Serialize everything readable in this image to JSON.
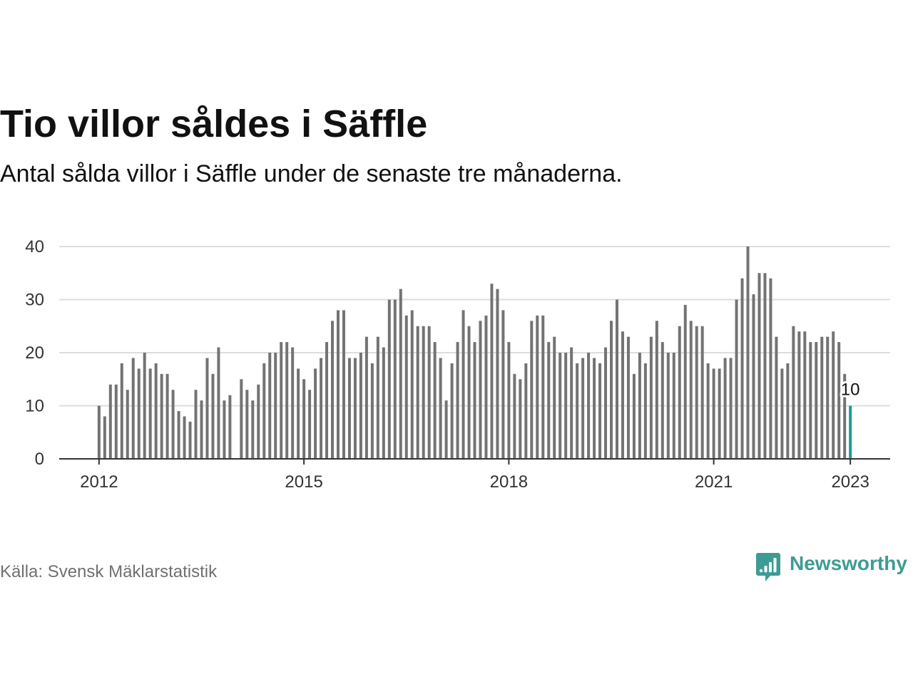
{
  "chart_data": {
    "type": "bar",
    "title": "Tio villor såldes i Säffle",
    "subtitle": "Antal sålda villor i Säffle under de senaste tre månaderna.",
    "x": [
      "2012-01",
      "2012-02",
      "2012-03",
      "2012-04",
      "2012-05",
      "2012-06",
      "2012-07",
      "2012-08",
      "2012-09",
      "2012-10",
      "2012-11",
      "2012-12",
      "2013-01",
      "2013-02",
      "2013-03",
      "2013-04",
      "2013-05",
      "2013-06",
      "2013-07",
      "2013-08",
      "2013-09",
      "2013-10",
      "2013-11",
      "2013-12",
      "2014-01",
      "2014-02",
      "2014-03",
      "2014-04",
      "2014-05",
      "2014-06",
      "2014-07",
      "2014-08",
      "2014-09",
      "2014-10",
      "2014-11",
      "2014-12",
      "2015-01",
      "2015-02",
      "2015-03",
      "2015-04",
      "2015-05",
      "2015-06",
      "2015-07",
      "2015-08",
      "2015-09",
      "2015-10",
      "2015-11",
      "2015-12",
      "2016-01",
      "2016-02",
      "2016-03",
      "2016-04",
      "2016-05",
      "2016-06",
      "2016-07",
      "2016-08",
      "2016-09",
      "2016-10",
      "2016-11",
      "2016-12",
      "2017-01",
      "2017-02",
      "2017-03",
      "2017-04",
      "2017-05",
      "2017-06",
      "2017-07",
      "2017-08",
      "2017-09",
      "2017-10",
      "2017-11",
      "2017-12",
      "2018-01",
      "2018-02",
      "2018-03",
      "2018-04",
      "2018-05",
      "2018-06",
      "2018-07",
      "2018-08",
      "2018-09",
      "2018-10",
      "2018-11",
      "2018-12",
      "2019-01",
      "2019-02",
      "2019-03",
      "2019-04",
      "2019-05",
      "2019-06",
      "2019-07",
      "2019-08",
      "2019-09",
      "2019-10",
      "2019-11",
      "2019-12",
      "2020-01",
      "2020-02",
      "2020-03",
      "2020-04",
      "2020-05",
      "2020-06",
      "2020-07",
      "2020-08",
      "2020-09",
      "2020-10",
      "2020-11",
      "2020-12",
      "2021-01",
      "2021-02",
      "2021-03",
      "2021-04",
      "2021-05",
      "2021-06",
      "2021-07",
      "2021-08",
      "2021-09",
      "2021-10",
      "2021-11",
      "2021-12",
      "2022-01",
      "2022-02",
      "2022-03",
      "2022-04",
      "2022-05",
      "2022-06",
      "2022-07",
      "2022-08",
      "2022-09",
      "2022-10",
      "2022-11",
      "2022-12",
      "2023-01"
    ],
    "values": [
      10,
      8,
      14,
      14,
      18,
      13,
      19,
      17,
      20,
      17,
      18,
      16,
      16,
      13,
      9,
      8,
      7,
      13,
      11,
      19,
      16,
      21,
      11,
      12,
      null,
      15,
      13,
      11,
      14,
      18,
      20,
      20,
      22,
      22,
      21,
      17,
      15,
      13,
      17,
      19,
      22,
      26,
      28,
      28,
      19,
      19,
      20,
      23,
      18,
      23,
      21,
      30,
      30,
      32,
      27,
      28,
      25,
      25,
      25,
      22,
      19,
      11,
      18,
      22,
      28,
      25,
      22,
      26,
      27,
      33,
      32,
      28,
      22,
      16,
      15,
      18,
      26,
      27,
      27,
      22,
      23,
      20,
      20,
      21,
      18,
      19,
      20,
      19,
      18,
      21,
      26,
      30,
      24,
      23,
      16,
      20,
      18,
      23,
      26,
      22,
      20,
      20,
      25,
      29,
      26,
      25,
      25,
      18,
      17,
      17,
      19,
      19,
      30,
      34,
      40,
      31,
      35,
      35,
      34,
      23,
      17,
      18,
      25,
      24,
      24,
      22,
      22,
      23,
      23,
      24,
      22,
      16,
      10
    ],
    "xlim": [
      "2011-06",
      "2023-08"
    ],
    "ylim": [
      0,
      40
    ],
    "yticks": [
      0,
      10,
      20,
      30,
      40
    ],
    "xticks": [
      {
        "date": "2012-01",
        "label": "2012"
      },
      {
        "date": "2015-01",
        "label": "2015"
      },
      {
        "date": "2018-01",
        "label": "2018"
      },
      {
        "date": "2021-01",
        "label": "2021"
      },
      {
        "date": "2023-01",
        "label": "2023"
      }
    ],
    "grid": true,
    "highlight": {
      "date": "2023-01",
      "label": "10"
    },
    "colors": {
      "bar": "#737373",
      "highlight": "#189e97",
      "grid": "#dddddd",
      "axis": "#333333"
    }
  },
  "footer": {
    "source": "Källa: Svensk Mäklarstatistik"
  },
  "brand": {
    "name": "Newsworthy",
    "color": "#3c9c94",
    "icon": "newsworthy-logo-icon"
  }
}
